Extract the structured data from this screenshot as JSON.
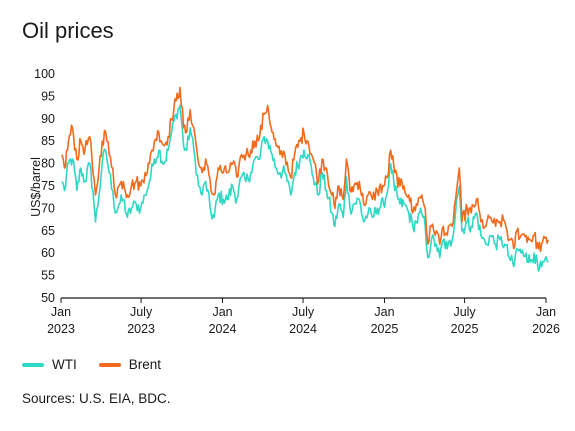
{
  "chart_data": {
    "type": "line",
    "title": "Oil prices",
    "ylabel": "US$/barrel",
    "xlabel": "",
    "ylim": [
      50,
      100
    ],
    "yticks": [
      50,
      55,
      60,
      65,
      70,
      75,
      80,
      85,
      90,
      95,
      100
    ],
    "xlim": [
      "2023-01",
      "2026-01"
    ],
    "xticks": [
      {
        "value": "2023-01",
        "line1": "Jan",
        "line2": "2023"
      },
      {
        "value": "2023-07",
        "line1": "July",
        "line2": "2023"
      },
      {
        "value": "2024-01",
        "line1": "Jan",
        "line2": "2024"
      },
      {
        "value": "2024-07",
        "line1": "July",
        "line2": "2024"
      },
      {
        "value": "2025-01",
        "line1": "Jan",
        "line2": "2025"
      },
      {
        "value": "2025-07",
        "line1": "July",
        "line2": "2025"
      },
      {
        "value": "2026-01",
        "line1": "Jan",
        "line2": "2026"
      }
    ],
    "grid": false,
    "legend_position": "bottom-left",
    "series": [
      {
        "name": "WTI",
        "color": "#2ed8c3",
        "points": [
          [
            "2023-01-03",
            76
          ],
          [
            "2023-01-09",
            74
          ],
          [
            "2023-01-18",
            80
          ],
          [
            "2023-01-27",
            81
          ],
          [
            "2023-02-06",
            74
          ],
          [
            "2023-02-15",
            79
          ],
          [
            "2023-02-24",
            76
          ],
          [
            "2023-03-07",
            80
          ],
          [
            "2023-03-14",
            74
          ],
          [
            "2023-03-20",
            67
          ],
          [
            "2023-03-28",
            73
          ],
          [
            "2023-04-04",
            80
          ],
          [
            "2023-04-12",
            83
          ],
          [
            "2023-04-20",
            78
          ],
          [
            "2023-04-28",
            74
          ],
          [
            "2023-05-04",
            69
          ],
          [
            "2023-05-12",
            71
          ],
          [
            "2023-05-22",
            72
          ],
          [
            "2023-05-31",
            68
          ],
          [
            "2023-06-09",
            70
          ],
          [
            "2023-06-20",
            71
          ],
          [
            "2023-06-30",
            70
          ],
          [
            "2023-07-10",
            73
          ],
          [
            "2023-07-20",
            76
          ],
          [
            "2023-07-31",
            81
          ],
          [
            "2023-08-10",
            83
          ],
          [
            "2023-08-22",
            80
          ],
          [
            "2023-08-31",
            83
          ],
          [
            "2023-09-08",
            87
          ],
          [
            "2023-09-18",
            91
          ],
          [
            "2023-09-27",
            93
          ],
          [
            "2023-10-05",
            84
          ],
          [
            "2023-10-12",
            83
          ],
          [
            "2023-10-20",
            88
          ],
          [
            "2023-10-31",
            81
          ],
          [
            "2023-11-08",
            75
          ],
          [
            "2023-11-16",
            73
          ],
          [
            "2023-11-24",
            76
          ],
          [
            "2023-12-06",
            69
          ],
          [
            "2023-12-13",
            68
          ],
          [
            "2023-12-22",
            73
          ],
          [
            "2024-01-03",
            72
          ],
          [
            "2024-01-12",
            72
          ],
          [
            "2024-01-24",
            75
          ],
          [
            "2024-02-02",
            72
          ],
          [
            "2024-02-13",
            77
          ],
          [
            "2024-02-23",
            76
          ],
          [
            "2024-03-05",
            78
          ],
          [
            "2024-03-14",
            81
          ],
          [
            "2024-03-25",
            81
          ],
          [
            "2024-04-04",
            86
          ],
          [
            "2024-04-12",
            85
          ],
          [
            "2024-04-22",
            82
          ],
          [
            "2024-05-01",
            79
          ],
          [
            "2024-05-10",
            78
          ],
          [
            "2024-05-21",
            78
          ],
          [
            "2024-06-03",
            73
          ],
          [
            "2024-06-12",
            78
          ],
          [
            "2024-06-24",
            81
          ],
          [
            "2024-07-03",
            83
          ],
          [
            "2024-07-12",
            82
          ],
          [
            "2024-07-24",
            77
          ],
          [
            "2024-08-05",
            73
          ],
          [
            "2024-08-13",
            78
          ],
          [
            "2024-08-23",
            74
          ],
          [
            "2024-09-04",
            69
          ],
          [
            "2024-09-11",
            66
          ],
          [
            "2024-09-20",
            71
          ],
          [
            "2024-09-30",
            68
          ],
          [
            "2024-10-07",
            77
          ],
          [
            "2024-10-15",
            70
          ],
          [
            "2024-10-24",
            71
          ],
          [
            "2024-11-05",
            72
          ],
          [
            "2024-11-15",
            67
          ],
          [
            "2024-11-25",
            69
          ],
          [
            "2024-12-05",
            68
          ],
          [
            "2024-12-16",
            70
          ],
          [
            "2024-12-30",
            71
          ],
          [
            "2025-01-08",
            74
          ],
          [
            "2025-01-15",
            80
          ],
          [
            "2025-01-24",
            74
          ],
          [
            "2025-02-05",
            71
          ],
          [
            "2025-02-14",
            71
          ],
          [
            "2025-02-25",
            69
          ],
          [
            "2025-03-06",
            66
          ],
          [
            "2025-03-14",
            67
          ],
          [
            "2025-03-26",
            69
          ],
          [
            "2025-04-03",
            66
          ],
          [
            "2025-04-09",
            59
          ],
          [
            "2025-04-17",
            63
          ],
          [
            "2025-04-28",
            62
          ],
          [
            "2025-05-06",
            59
          ],
          [
            "2025-05-14",
            63
          ],
          [
            "2025-05-23",
            61
          ],
          [
            "2025-06-03",
            63
          ],
          [
            "2025-06-13",
            72
          ],
          [
            "2025-06-19",
            75
          ],
          [
            "2025-06-25",
            65
          ],
          [
            "2025-07-07",
            67
          ],
          [
            "2025-07-16",
            66
          ],
          [
            "2025-07-28",
            69
          ],
          [
            "2025-08-07",
            64
          ],
          [
            "2025-08-18",
            62
          ],
          [
            "2025-08-29",
            64
          ],
          [
            "2025-09-09",
            62
          ],
          [
            "2025-09-19",
            63
          ],
          [
            "2025-09-30",
            62
          ],
          [
            "2025-10-10",
            59
          ],
          [
            "2025-10-20",
            57
          ],
          [
            "2025-10-27",
            61
          ],
          [
            "2025-11-06",
            60
          ],
          [
            "2025-11-17",
            60
          ],
          [
            "2025-11-26",
            58
          ],
          [
            "2025-12-05",
            60
          ],
          [
            "2025-12-15",
            56
          ],
          [
            "2025-12-22",
            57
          ],
          [
            "2026-01-06",
            58
          ]
        ]
      },
      {
        "name": "Brent",
        "color": "#f26a1b",
        "points": [
          [
            "2023-01-03",
            82
          ],
          [
            "2023-01-09",
            79
          ],
          [
            "2023-01-18",
            85
          ],
          [
            "2023-01-27",
            88
          ],
          [
            "2023-02-06",
            81
          ],
          [
            "2023-02-15",
            85
          ],
          [
            "2023-02-24",
            83
          ],
          [
            "2023-03-07",
            86
          ],
          [
            "2023-03-14",
            78
          ],
          [
            "2023-03-20",
            73
          ],
          [
            "2023-03-28",
            79
          ],
          [
            "2023-04-04",
            85
          ],
          [
            "2023-04-12",
            87
          ],
          [
            "2023-04-20",
            82
          ],
          [
            "2023-04-28",
            79
          ],
          [
            "2023-05-04",
            73
          ],
          [
            "2023-05-12",
            75
          ],
          [
            "2023-05-22",
            76
          ],
          [
            "2023-05-31",
            73
          ],
          [
            "2023-06-09",
            75
          ],
          [
            "2023-06-20",
            76
          ],
          [
            "2023-06-30",
            75
          ],
          [
            "2023-07-10",
            78
          ],
          [
            "2023-07-20",
            80
          ],
          [
            "2023-07-31",
            85
          ],
          [
            "2023-08-10",
            87
          ],
          [
            "2023-08-22",
            84
          ],
          [
            "2023-08-31",
            86
          ],
          [
            "2023-09-08",
            90
          ],
          [
            "2023-09-18",
            94
          ],
          [
            "2023-09-27",
            97
          ],
          [
            "2023-10-05",
            88
          ],
          [
            "2023-10-12",
            87
          ],
          [
            "2023-10-20",
            92
          ],
          [
            "2023-10-31",
            86
          ],
          [
            "2023-11-08",
            80
          ],
          [
            "2023-11-16",
            78
          ],
          [
            "2023-11-24",
            81
          ],
          [
            "2023-12-06",
            74
          ],
          [
            "2023-12-13",
            73
          ],
          [
            "2023-12-22",
            79
          ],
          [
            "2024-01-03",
            78
          ],
          [
            "2024-01-12",
            78
          ],
          [
            "2024-01-24",
            80
          ],
          [
            "2024-02-02",
            77
          ],
          [
            "2024-02-13",
            82
          ],
          [
            "2024-02-23",
            82
          ],
          [
            "2024-03-05",
            83
          ],
          [
            "2024-03-14",
            85
          ],
          [
            "2024-03-25",
            86
          ],
          [
            "2024-04-04",
            91
          ],
          [
            "2024-04-12",
            93
          ],
          [
            "2024-04-22",
            87
          ],
          [
            "2024-05-01",
            84
          ],
          [
            "2024-05-10",
            82
          ],
          [
            "2024-05-21",
            82
          ],
          [
            "2024-06-03",
            77
          ],
          [
            "2024-06-12",
            82
          ],
          [
            "2024-06-24",
            85
          ],
          [
            "2024-07-03",
            87
          ],
          [
            "2024-07-12",
            85
          ],
          [
            "2024-07-24",
            81
          ],
          [
            "2024-08-05",
            76
          ],
          [
            "2024-08-13",
            81
          ],
          [
            "2024-08-23",
            79
          ],
          [
            "2024-09-04",
            73
          ],
          [
            "2024-09-11",
            70
          ],
          [
            "2024-09-20",
            75
          ],
          [
            "2024-09-30",
            72
          ],
          [
            "2024-10-07",
            81
          ],
          [
            "2024-10-15",
            74
          ],
          [
            "2024-10-24",
            75
          ],
          [
            "2024-11-05",
            76
          ],
          [
            "2024-11-15",
            71
          ],
          [
            "2024-11-25",
            73
          ],
          [
            "2024-12-05",
            72
          ],
          [
            "2024-12-16",
            74
          ],
          [
            "2024-12-30",
            75
          ],
          [
            "2025-01-08",
            77
          ],
          [
            "2025-01-15",
            83
          ],
          [
            "2025-01-24",
            78
          ],
          [
            "2025-02-05",
            75
          ],
          [
            "2025-02-14",
            75
          ],
          [
            "2025-02-25",
            73
          ],
          [
            "2025-03-06",
            69
          ],
          [
            "2025-03-14",
            71
          ],
          [
            "2025-03-26",
            73
          ],
          [
            "2025-04-03",
            70
          ],
          [
            "2025-04-09",
            62
          ],
          [
            "2025-04-17",
            66
          ],
          [
            "2025-04-28",
            65
          ],
          [
            "2025-05-06",
            62
          ],
          [
            "2025-05-14",
            66
          ],
          [
            "2025-05-23",
            64
          ],
          [
            "2025-06-03",
            66
          ],
          [
            "2025-06-13",
            74
          ],
          [
            "2025-06-19",
            79
          ],
          [
            "2025-06-25",
            67
          ],
          [
            "2025-07-07",
            70
          ],
          [
            "2025-07-16",
            69
          ],
          [
            "2025-07-28",
            72
          ],
          [
            "2025-08-07",
            67
          ],
          [
            "2025-08-18",
            66
          ],
          [
            "2025-08-29",
            68
          ],
          [
            "2025-09-09",
            66
          ],
          [
            "2025-09-19",
            67
          ],
          [
            "2025-09-30",
            67
          ],
          [
            "2025-10-10",
            63
          ],
          [
            "2025-10-20",
            61
          ],
          [
            "2025-10-27",
            65
          ],
          [
            "2025-11-06",
            64
          ],
          [
            "2025-11-17",
            64
          ],
          [
            "2025-11-26",
            63
          ],
          [
            "2025-12-05",
            64
          ],
          [
            "2025-12-15",
            61
          ],
          [
            "2025-12-22",
            62
          ],
          [
            "2026-01-06",
            63
          ]
        ]
      }
    ]
  },
  "legend": {
    "items": [
      {
        "name": "WTI",
        "color": "#2ed8c3"
      },
      {
        "name": "Brent",
        "color": "#f26a1b"
      }
    ]
  },
  "source_note": "Sources: U.S. EIA, BDC."
}
